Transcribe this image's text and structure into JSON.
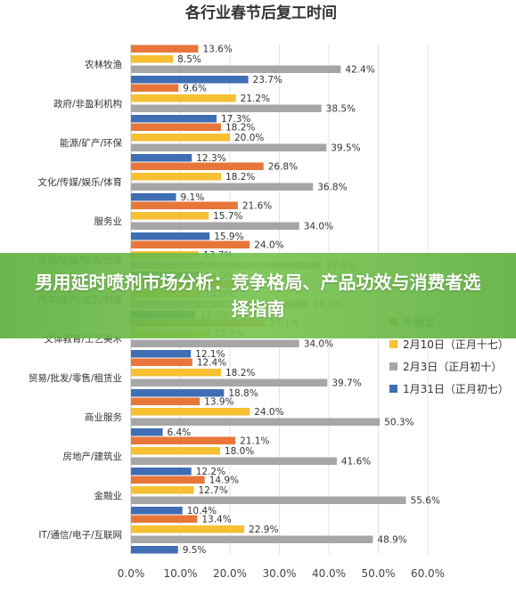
{
  "banner": {
    "text": "男用延时喷剂市场分析：竞争格局、产品功效与消费者选择指南"
  },
  "chart_data": {
    "type": "bar",
    "orientation": "horizontal",
    "title": "各行业春节后复工时间",
    "xlabel": "",
    "ylabel": "",
    "xlim": [
      0,
      60
    ],
    "x_ticks": [
      "0.0%",
      "10.0%",
      "20.0%",
      "30.0%",
      "40.0%",
      "50.0%",
      "60.0%"
    ],
    "grid": true,
    "legend_position": "right",
    "categories": [
      "农林牧渔",
      "政府/非盈利机构",
      "能源/矿产/环保",
      "文化/传媒/娱乐/体育",
      "服务业",
      "交通/运输/物流/仓储",
      "汽车/生产/加工/制造",
      "文体教育/工艺美术",
      "贸易/批发/零售/租赁业",
      "商业服务",
      "房地产/建筑业",
      "金融业",
      "IT/通信/电子/互联网"
    ],
    "series": [
      {
        "name": "不确定",
        "color": "#e8763a",
        "values": [
          13.6,
          9.6,
          18.2,
          26.8,
          21.6,
          24.0,
          22.0,
          27.1,
          12.4,
          13.9,
          21.1,
          14.9,
          13.4
        ]
      },
      {
        "name": "2月10日（正月十七）",
        "color": "#f7c032",
        "values": [
          8.5,
          21.2,
          20.0,
          18.2,
          15.7,
          13.7,
          14.0,
          15.9,
          18.2,
          24.0,
          18.0,
          12.7,
          22.9
        ]
      },
      {
        "name": "2月3日（正月初十）",
        "color": "#a6a6a6",
        "values": [
          42.4,
          38.5,
          39.5,
          36.8,
          34.0,
          38.4,
          36.0,
          34.0,
          39.7,
          50.3,
          41.6,
          55.6,
          48.9
        ]
      },
      {
        "name": "1月31日（正月初七）",
        "color": "#3f6eb4",
        "values": [
          23.7,
          17.3,
          12.3,
          9.1,
          15.9,
          14.0,
          13.0,
          12.1,
          18.8,
          6.4,
          12.2,
          10.4,
          9.5
        ]
      }
    ],
    "value_format": "%"
  }
}
